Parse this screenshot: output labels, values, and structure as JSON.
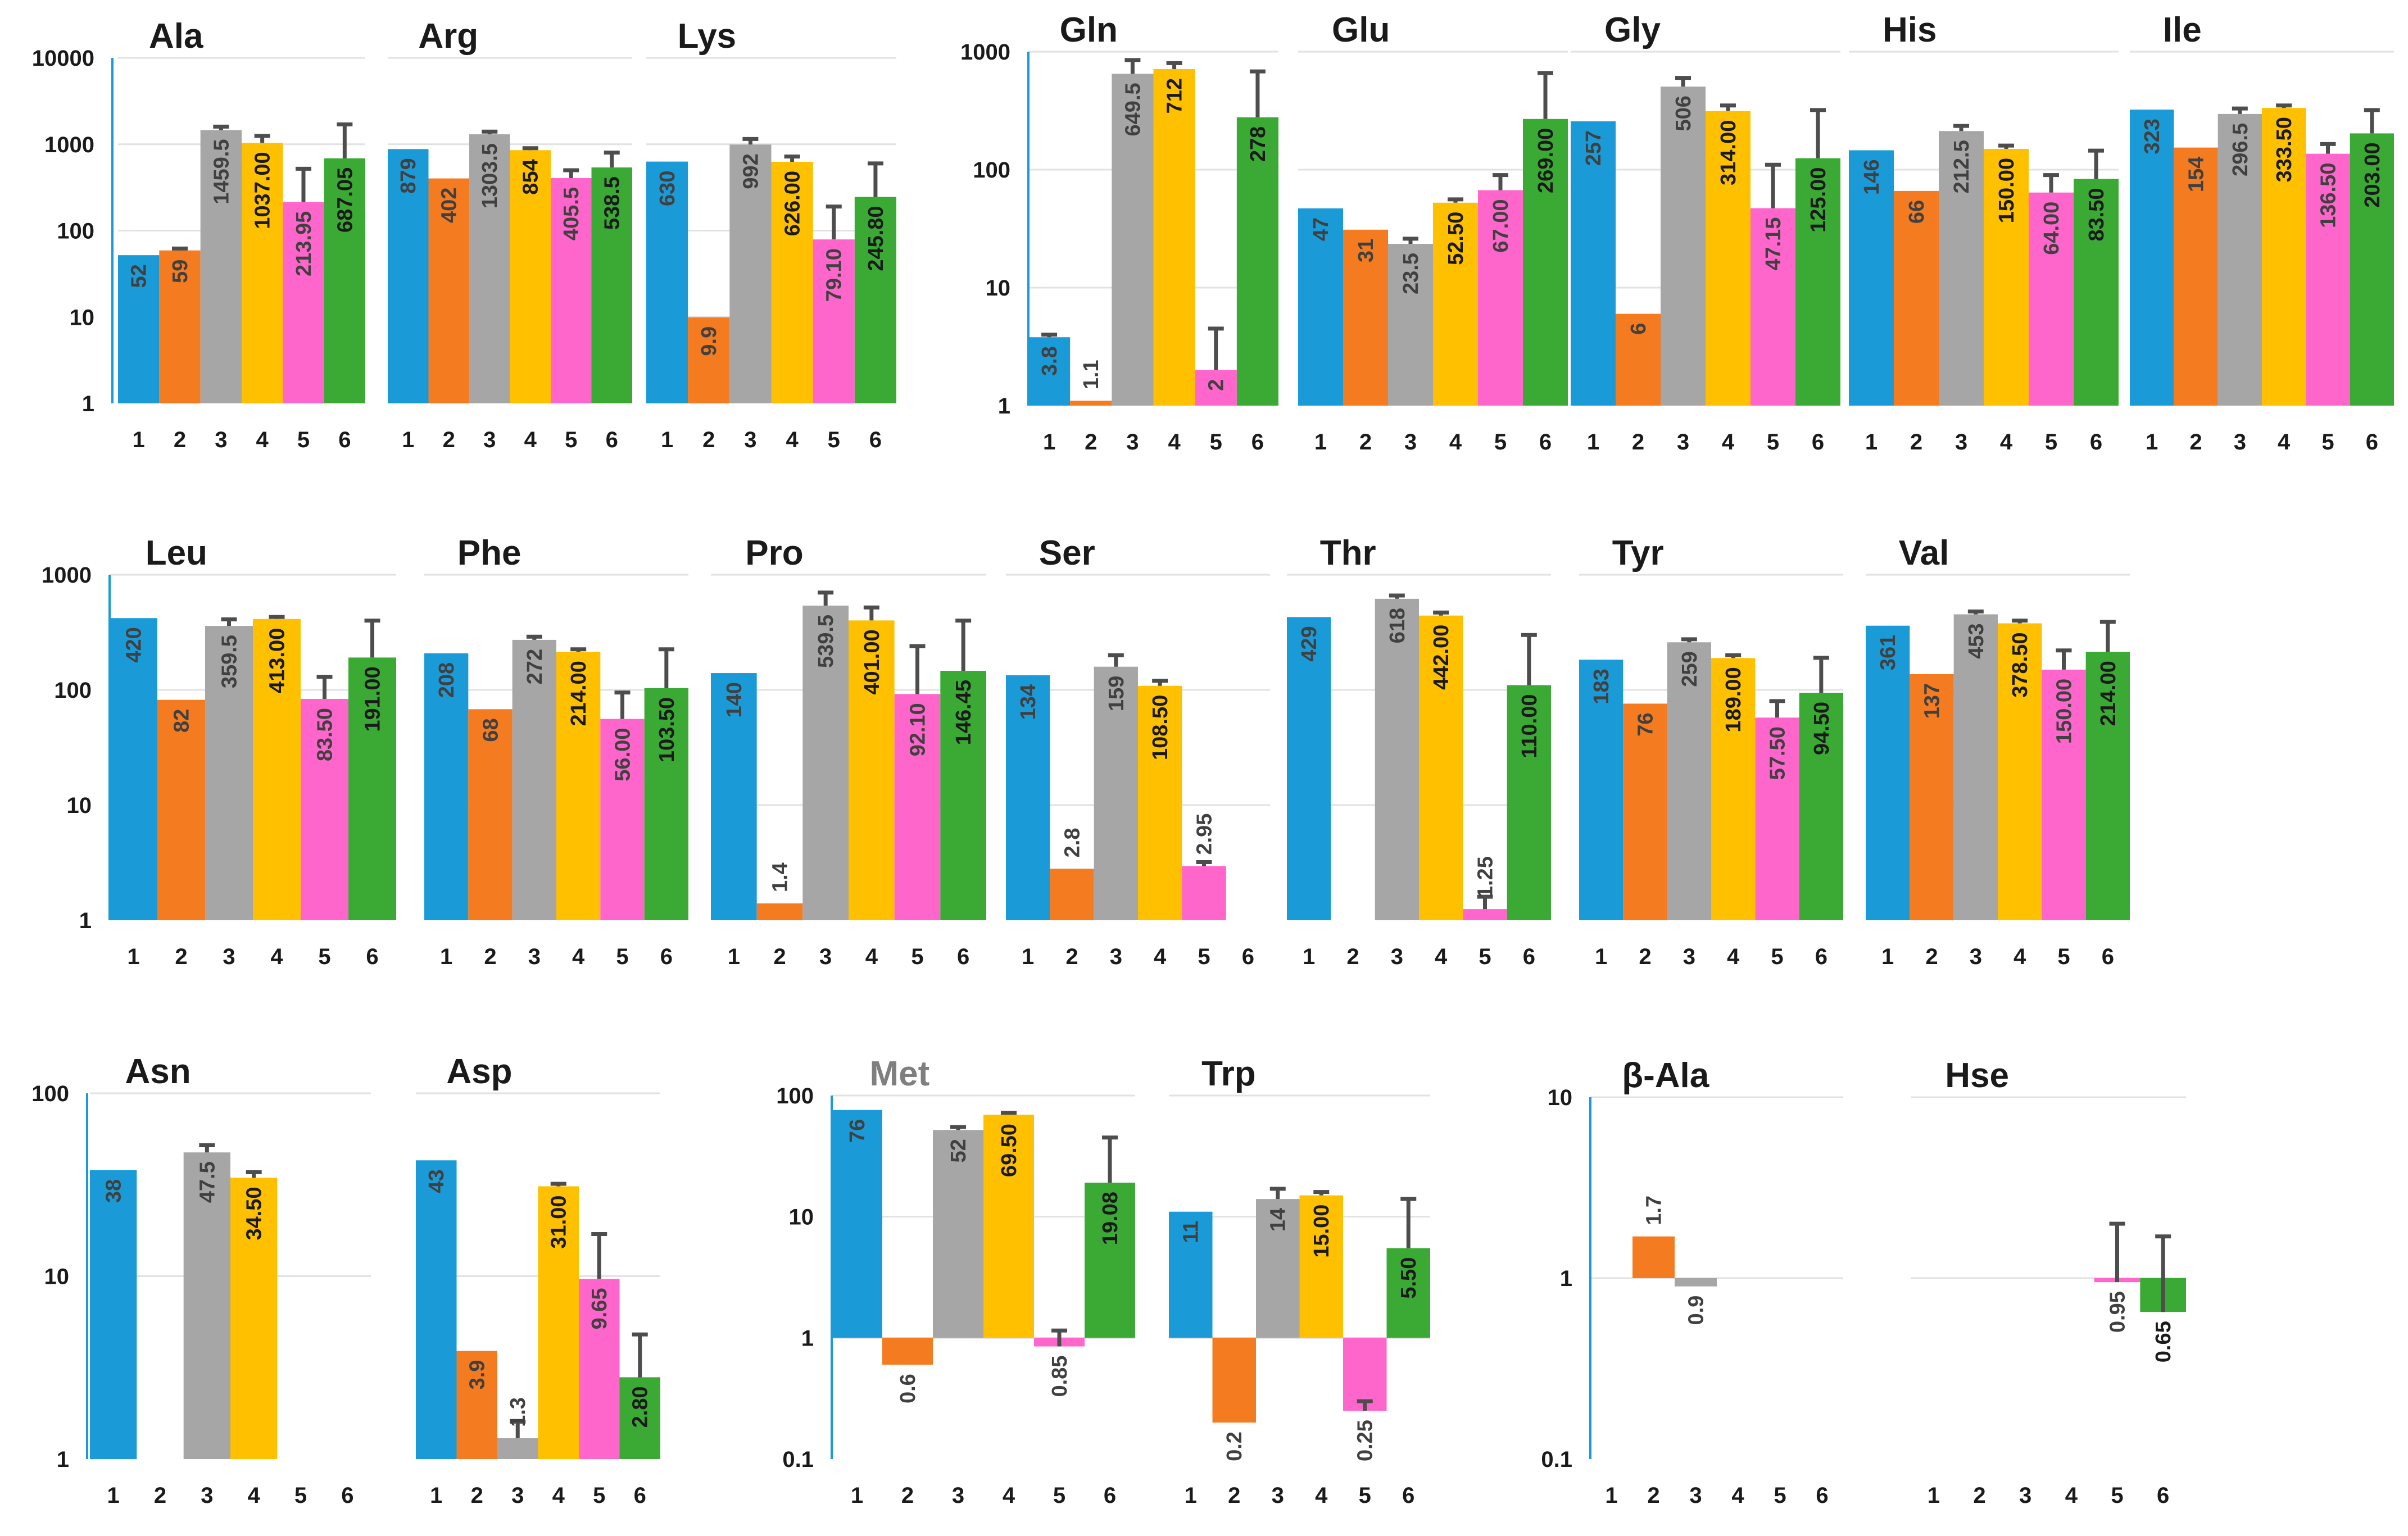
{
  "colors": {
    "c1": "#1a9bd7",
    "c2": "#f47b20",
    "c3": "#a6a6a6",
    "c4": "#ffc000",
    "c5": "#ff66cc",
    "c6": "#3aaa35",
    "error": "#4d4d4d",
    "axis": "#1a9bd7",
    "grid": "#e2e2e2",
    "label_dark": "#1a1a1a",
    "label_gray": "#404040",
    "met_title": "#7f7f7f"
  },
  "chart_data": [
    {
      "type": "bar",
      "group": "row1a",
      "yscale": "log",
      "ylim": [
        1,
        10000
      ],
      "yticks": [
        "1",
        "10",
        "100",
        "1000",
        "10000"
      ],
      "categories": [
        "1",
        "2",
        "3",
        "4",
        "5",
        "6"
      ],
      "panels": [
        {
          "title": "Ala",
          "values": [
            52,
            59,
            1459.5,
            1037,
            213.95,
            687.05
          ],
          "labels": [
            "52",
            "59",
            "1459.5",
            "1037.00",
            "213.95",
            "687.05"
          ],
          "errors": [
            null,
            62,
            1600,
            1250,
            520,
            1700
          ]
        },
        {
          "title": "Arg",
          "values": [
            879,
            402,
            1303.5,
            854,
            405.5,
            538.5
          ],
          "labels": [
            "879",
            "402",
            "1303.5",
            "854",
            "405.5",
            "538.5"
          ],
          "errors": [
            null,
            null,
            1400,
            900,
            500,
            800
          ]
        },
        {
          "title": "Lys",
          "values": [
            630,
            9.9,
            992,
            626,
            79.1,
            245.8
          ],
          "labels": [
            "630",
            "9.9",
            "992",
            "626.00",
            "79.10",
            "245.80"
          ],
          "errors": [
            null,
            null,
            1150,
            720,
            190,
            600
          ]
        }
      ]
    },
    {
      "type": "bar",
      "group": "row1b",
      "yscale": "log",
      "ylim": [
        1,
        1000
      ],
      "yticks": [
        "1",
        "10",
        "100",
        "1000"
      ],
      "categories": [
        "1",
        "2",
        "3",
        "4",
        "5",
        "6"
      ],
      "panels": [
        {
          "title": "Gln",
          "values": [
            3.8,
            1.1,
            649.5,
            712,
            2,
            278
          ],
          "labels": [
            "3.8",
            "1.1",
            "649.5",
            "712",
            "2",
            "278"
          ],
          "errors": [
            4,
            null,
            850,
            800,
            4.5,
            680
          ]
        },
        {
          "title": "Glu",
          "values": [
            47,
            31,
            23.5,
            52.5,
            67,
            269
          ],
          "labels": [
            "47",
            "31",
            "23.5",
            "52.50",
            "67.00",
            "269.00"
          ],
          "errors": [
            null,
            null,
            26,
            56,
            90,
            660
          ]
        },
        {
          "title": "Gly",
          "values": [
            257,
            6,
            506,
            314,
            47.15,
            125
          ],
          "labels": [
            "257",
            "6",
            "506",
            "314.00",
            "47.15",
            "125.00"
          ],
          "errors": [
            null,
            null,
            600,
            350,
            110,
            320
          ]
        },
        {
          "title": "His",
          "values": [
            146,
            66,
            212.5,
            150,
            64,
            83.5
          ],
          "labels": [
            "146",
            "66",
            "212.5",
            "150.00",
            "64.00",
            "83.50"
          ],
          "errors": [
            null,
            null,
            235,
            160,
            90,
            145
          ]
        },
        {
          "title": "Ile",
          "values": [
            323,
            154,
            296.5,
            333.5,
            136.5,
            203
          ],
          "labels": [
            "323",
            "154",
            "296.5",
            "333.50",
            "136.50",
            "203.00"
          ],
          "errors": [
            null,
            null,
            330,
            350,
            165,
            320
          ]
        }
      ]
    },
    {
      "type": "bar",
      "group": "row2",
      "yscale": "log",
      "ylim": [
        1,
        1000
      ],
      "yticks": [
        "1",
        "10",
        "100",
        "1000"
      ],
      "categories": [
        "1",
        "2",
        "3",
        "4",
        "5",
        "6"
      ],
      "panels": [
        {
          "title": "Leu",
          "values": [
            420,
            82,
            359.5,
            413,
            83.5,
            191
          ],
          "labels": [
            "420",
            "82",
            "359.5",
            "413.00",
            "83.50",
            "191.00"
          ],
          "errors": [
            null,
            null,
            410,
            430,
            130,
            400
          ]
        },
        {
          "title": "Phe",
          "values": [
            208,
            68,
            272,
            214,
            56,
            103.5
          ],
          "labels": [
            "208",
            "68",
            "272",
            "214.00",
            "56.00",
            "103.50"
          ],
          "errors": [
            null,
            null,
            290,
            225,
            95,
            225
          ]
        },
        {
          "title": "Pro",
          "values": [
            140,
            1.4,
            539.5,
            401,
            92.1,
            146.45
          ],
          "labels": [
            "140",
            "1.4",
            "539.5",
            "401.00",
            "92.10",
            "146.45"
          ],
          "errors": [
            null,
            null,
            700,
            520,
            240,
            400
          ]
        },
        {
          "title": "Ser",
          "values": [
            134,
            2.8,
            159,
            108.5,
            2.95,
            null
          ],
          "labels": [
            "134",
            "2.8",
            "159",
            "108.50",
            "2.95",
            ""
          ],
          "errors": [
            null,
            null,
            200,
            120,
            3.2,
            null
          ]
        },
        {
          "title": "Thr",
          "values": [
            429,
            null,
            618,
            442,
            1.25,
            110
          ],
          "labels": [
            "429",
            "",
            "618",
            "442.00",
            "1.25",
            "110.00"
          ],
          "errors": [
            null,
            null,
            660,
            470,
            1.6,
            300
          ]
        },
        {
          "title": "Tyr",
          "values": [
            183,
            76,
            259,
            189,
            57.5,
            94.5
          ],
          "labels": [
            "183",
            "76",
            "259",
            "189.00",
            "57.50",
            "94.50"
          ],
          "errors": [
            null,
            null,
            275,
            200,
            80,
            190
          ]
        },
        {
          "title": "Val",
          "values": [
            361,
            137,
            453,
            378.5,
            150,
            214
          ],
          "labels": [
            "361",
            "137",
            "453",
            "378.50",
            "150.00",
            "214.00"
          ],
          "errors": [
            null,
            null,
            480,
            400,
            220,
            390
          ]
        }
      ]
    },
    {
      "type": "bar",
      "group": "row3a",
      "yscale": "log",
      "ylim": [
        1,
        100
      ],
      "yticks": [
        "1",
        "10",
        "100"
      ],
      "categories": [
        "1",
        "2",
        "3",
        "4",
        "5",
        "6"
      ],
      "panels": [
        {
          "title": "Asn",
          "values": [
            38,
            null,
            47.5,
            34.5,
            null,
            null
          ],
          "labels": [
            "38",
            "",
            "47.5",
            "34.50",
            "",
            ""
          ],
          "errors": [
            null,
            null,
            52,
            37,
            null,
            null
          ]
        },
        {
          "title": "Asp",
          "values": [
            43,
            3.9,
            1.3,
            31,
            9.65,
            2.8
          ],
          "labels": [
            "43",
            "3.9",
            "1.3",
            "31.00",
            "9.65",
            "2.80"
          ],
          "errors": [
            null,
            null,
            1.6,
            32,
            17,
            4.8
          ]
        }
      ]
    },
    {
      "type": "bar",
      "group": "row3b",
      "yscale": "log",
      "ylim": [
        0.1,
        100
      ],
      "yticks": [
        "0.1",
        "1",
        "10",
        "100"
      ],
      "baseline": 1,
      "categories": [
        "1",
        "2",
        "3",
        "4",
        "5",
        "6"
      ],
      "panels": [
        {
          "title": "Met",
          "values": [
            76,
            0.6,
            52,
            69.5,
            0.85,
            19.08
          ],
          "labels": [
            "76",
            "0.6",
            "52",
            "69.50",
            "0.85",
            "19.08"
          ],
          "errors": [
            null,
            null,
            55,
            72,
            1.15,
            45
          ]
        },
        {
          "title": "Trp",
          "values": [
            11,
            0.2,
            14,
            15,
            0.25,
            5.5
          ],
          "labels": [
            "11",
            "0.2",
            "14",
            "15.00",
            "0.25",
            "5.50"
          ],
          "errors": [
            null,
            null,
            17,
            16,
            0.3,
            14
          ]
        }
      ]
    },
    {
      "type": "bar",
      "group": "row3c",
      "yscale": "log",
      "ylim": [
        0.1,
        10
      ],
      "yticks": [
        "0.1",
        "1",
        "10"
      ],
      "baseline": 1,
      "categories": [
        "1",
        "2",
        "3",
        "4",
        "5",
        "6"
      ],
      "panels": [
        {
          "title": "β-Ala",
          "values": [
            null,
            1.7,
            0.9,
            null,
            null,
            null
          ],
          "labels": [
            "",
            "1.7",
            "0.9",
            "",
            "",
            ""
          ],
          "errors": [
            null,
            null,
            null,
            null,
            null,
            null
          ]
        },
        {
          "title": "Hse",
          "values": [
            null,
            null,
            null,
            null,
            0.95,
            0.65
          ],
          "labels": [
            "",
            "",
            "",
            "",
            "0.95",
            "0.65"
          ],
          "errors": [
            null,
            null,
            null,
            null,
            2,
            1.7
          ]
        }
      ]
    }
  ]
}
